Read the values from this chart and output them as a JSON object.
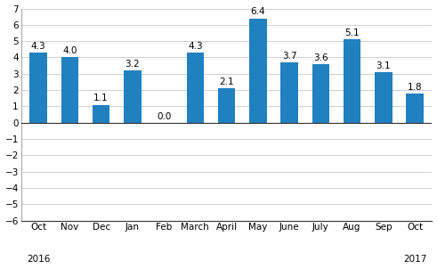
{
  "categories": [
    "Oct",
    "Nov",
    "Dec",
    "Jan",
    "Feb",
    "March",
    "April",
    "May",
    "June",
    "July",
    "Aug",
    "Sep",
    "Oct"
  ],
  "values": [
    4.3,
    4.0,
    1.1,
    3.2,
    0.0,
    4.3,
    2.1,
    6.4,
    3.7,
    3.6,
    5.1,
    3.1,
    1.8
  ],
  "bar_color": "#2080c0",
  "ylim": [
    -6,
    7
  ],
  "yticks": [
    -6,
    -5,
    -4,
    -3,
    -2,
    -1,
    0,
    1,
    2,
    3,
    4,
    5,
    6,
    7
  ],
  "year_labels": [
    [
      "2016",
      0
    ],
    [
      "2017",
      12
    ]
  ],
  "background_color": "#ffffff",
  "grid_color": "#d0d0d0",
  "label_fontsize": 7.5,
  "value_fontsize": 7.5,
  "bar_width": 0.55
}
